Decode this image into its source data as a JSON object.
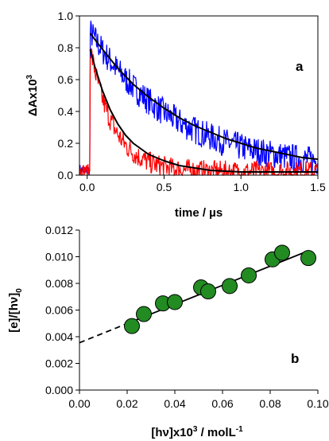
{
  "chart_data": [
    {
      "type": "line",
      "panel_label": "a",
      "xlabel": "time / µs",
      "ylabel": "ΔAx10",
      "ylabel_sup": "3",
      "xlim": [
        -0.05,
        1.5
      ],
      "ylim": [
        0.0,
        1.0
      ],
      "xticks": [
        0.0,
        0.5,
        1.0,
        1.5
      ],
      "xtick_labels": [
        "0.0",
        "0.5",
        "1.0",
        "1.5"
      ],
      "yticks": [
        0.0,
        0.2,
        0.4,
        0.6,
        0.8,
        1.0
      ],
      "ytick_labels": [
        "0.0",
        "0.2",
        "0.4",
        "0.6",
        "0.8",
        "1.0"
      ],
      "series": [
        {
          "color": "#0000ff",
          "kind": "noisy-trace",
          "plateau": 0.0,
          "peak": 0.9,
          "rise_x": 0.02,
          "decay_tau": 0.55,
          "offset": 0.03
        },
        {
          "color": "#ff0000",
          "kind": "noisy-trace",
          "plateau": 0.0,
          "peak": 0.8,
          "rise_x": 0.02,
          "decay_tau": 0.15,
          "offset": 0.02
        },
        {
          "color": "#000000",
          "kind": "fit",
          "x": [
            0.02,
            0.1,
            0.2,
            0.3,
            0.4,
            0.5,
            0.6,
            0.7,
            0.8,
            0.9,
            1.0,
            1.1,
            1.2,
            1.3,
            1.4,
            1.5
          ],
          "y": [
            0.89,
            0.79,
            0.67,
            0.57,
            0.49,
            0.42,
            0.36,
            0.31,
            0.27,
            0.23,
            0.2,
            0.17,
            0.15,
            0.13,
            0.11,
            0.1
          ]
        },
        {
          "color": "#000000",
          "kind": "fit",
          "x": [
            0.02,
            0.05,
            0.1,
            0.15,
            0.2,
            0.25,
            0.3,
            0.4,
            0.5,
            0.6,
            0.8,
            1.0,
            1.2,
            1.5
          ],
          "y": [
            0.79,
            0.68,
            0.53,
            0.41,
            0.32,
            0.25,
            0.2,
            0.13,
            0.09,
            0.06,
            0.03,
            0.02,
            0.02,
            0.02
          ]
        }
      ]
    },
    {
      "type": "scatter",
      "panel_label": "b",
      "xlabel": "[hν]x10",
      "xlabel_sup": "3",
      "xlabel_tail": " / molL",
      "xlabel_sup2": "-1",
      "ylabel": "[e]/[hν]",
      "ylabel_sub": "0",
      "xlim": [
        0.0,
        0.1
      ],
      "ylim": [
        0.0,
        0.012
      ],
      "xticks": [
        0.0,
        0.02,
        0.04,
        0.06,
        0.08,
        0.1
      ],
      "xtick_labels": [
        "0.00",
        "0.02",
        "0.04",
        "0.06",
        "0.08",
        "0.10"
      ],
      "yticks": [
        0.0,
        0.002,
        0.004,
        0.006,
        0.008,
        0.01,
        0.012
      ],
      "ytick_labels": [
        "0.000",
        "0.002",
        "0.004",
        "0.006",
        "0.008",
        "0.010",
        "0.012"
      ],
      "points": {
        "x": [
          0.022,
          0.027,
          0.035,
          0.04,
          0.051,
          0.054,
          0.063,
          0.071,
          0.081,
          0.085,
          0.096
        ],
        "y": [
          0.0048,
          0.0057,
          0.0065,
          0.0066,
          0.0077,
          0.0074,
          0.0078,
          0.0086,
          0.0098,
          0.0103,
          0.0099
        ],
        "color": "#228b22"
      },
      "fit_line": {
        "slope": 0.0718,
        "intercept": 0.00355,
        "x_solid": [
          0.022,
          0.096
        ],
        "x_dashed": [
          0.0,
          0.022
        ]
      }
    }
  ]
}
